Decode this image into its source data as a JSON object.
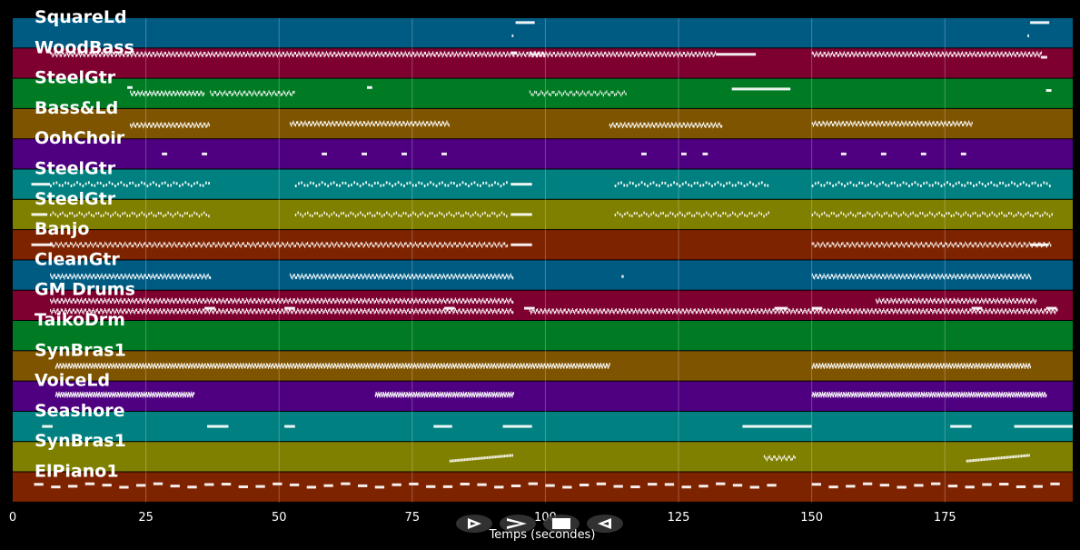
{
  "chart_data": {
    "type": "piano-roll",
    "xlabel": "Temps (secondes)",
    "xlim": [
      0,
      199
    ],
    "xticks": [
      0,
      25,
      50,
      75,
      100,
      125,
      150,
      175
    ],
    "grid": true,
    "tracks": [
      {
        "name": "SquareLd",
        "color": "#005b83",
        "notes": [
          [
            94.4,
            3.6,
            0.15
          ],
          [
            93.7,
            0.3,
            0.6
          ],
          [
            191,
            3.6,
            0.15
          ],
          [
            190.5,
            0.3,
            0.6
          ]
        ]
      },
      {
        "name": "WoodBass",
        "color": "#7e0030",
        "dense": [
          [
            7,
            100,
            0.2,
            0.2
          ],
          [
            97,
            132,
            0.2,
            0.2
          ],
          [
            150,
            193,
            0.2,
            0.2
          ]
        ],
        "notes": [
          [
            132,
            7.5,
            0.2
          ],
          [
            93.5,
            1.2,
            0.15
          ],
          [
            193,
            1.2,
            0.3
          ]
        ]
      },
      {
        "name": "SteelGtr",
        "color": "#007b24",
        "dense": [
          [
            22,
            36,
            0.2,
            0.5
          ],
          [
            37,
            53,
            0.25,
            0.5
          ],
          [
            97,
            115,
            0.3,
            0.5
          ]
        ],
        "notes": [
          [
            135,
            11,
            0.35
          ],
          [
            66.5,
            1,
            0.3
          ],
          [
            194,
            1,
            0.4
          ],
          [
            21.5,
            1,
            0.3
          ]
        ]
      },
      {
        "name": "Bass&Ld",
        "color": "#7f5400",
        "dense": [
          [
            22,
            37,
            0.2,
            0.55
          ],
          [
            52,
            82,
            0.2,
            0.5
          ],
          [
            112,
            133,
            0.2,
            0.55
          ],
          [
            150,
            180,
            0.2,
            0.5
          ]
        ],
        "notes": []
      },
      {
        "name": "OohChoir",
        "color": "#4e0080",
        "notes": [
          [
            28,
            1,
            0.5
          ],
          [
            35.5,
            1,
            0.5
          ],
          [
            58,
            1,
            0.5
          ],
          [
            65.5,
            1,
            0.5
          ],
          [
            73,
            1,
            0.5
          ],
          [
            80.5,
            1,
            0.5
          ],
          [
            118,
            1,
            0.5
          ],
          [
            125.5,
            1,
            0.5
          ],
          [
            129.5,
            1,
            0.5
          ],
          [
            155.5,
            1,
            0.5
          ],
          [
            163,
            1,
            0.5
          ],
          [
            170.5,
            1,
            0.5
          ],
          [
            178,
            1,
            0.5
          ]
        ]
      },
      {
        "name": "SteelGtr",
        "color": "#008080",
        "dense": [
          [
            7,
            37,
            0.55,
            0.5
          ],
          [
            53,
            93,
            0.55,
            0.5
          ],
          [
            113,
            142,
            0.55,
            0.5
          ],
          [
            150,
            195,
            0.55,
            0.5
          ]
        ],
        "notes": [
          [
            3.5,
            3.5,
            0.5
          ],
          [
            93.5,
            4,
            0.5
          ]
        ]
      },
      {
        "name": "SteelGtr",
        "color": "#7f7f00",
        "dense": [
          [
            7,
            37,
            0.45,
            0.5
          ],
          [
            53,
            93,
            0.45,
            0.5
          ],
          [
            113,
            142,
            0.45,
            0.5
          ],
          [
            150,
            195,
            0.45,
            0.5
          ]
        ],
        "notes": [
          [
            3.5,
            3,
            0.5
          ],
          [
            93.5,
            4,
            0.5
          ]
        ]
      },
      {
        "name": "Banjo",
        "color": "#7e2300",
        "dense": [
          [
            7,
            93,
            0.25,
            0.5
          ],
          [
            150,
            195,
            0.25,
            0.5
          ]
        ],
        "notes": [
          [
            3.5,
            4,
            0.5
          ],
          [
            93.5,
            4,
            0.5
          ],
          [
            191,
            3.5,
            0.5
          ]
        ]
      },
      {
        "name": "CleanGtr",
        "color": "#005b83",
        "dense": [
          [
            7,
            37,
            0.2,
            0.55
          ],
          [
            52,
            94,
            0.2,
            0.55
          ],
          [
            150,
            191,
            0.2,
            0.55
          ]
        ],
        "notes": [
          [
            114.3,
            0.4,
            0.55
          ]
        ]
      },
      {
        "name": "GM Drums",
        "color": "#7e0030",
        "dense": [
          [
            7,
            94,
            0.2,
            0.35
          ],
          [
            7,
            94,
            0.2,
            0.7
          ],
          [
            97,
            196,
            0.2,
            0.7
          ],
          [
            162,
            192,
            0.2,
            0.35
          ]
        ],
        "notes": [
          [
            36,
            2,
            0.6
          ],
          [
            51,
            2,
            0.6
          ],
          [
            81,
            2,
            0.6
          ],
          [
            96,
            2,
            0.6
          ],
          [
            143,
            2.5,
            0.6
          ],
          [
            150,
            2,
            0.6
          ],
          [
            180,
            2,
            0.6
          ],
          [
            194,
            2,
            0.6
          ]
        ]
      },
      {
        "name": "TaikoDrm",
        "color": "#007b24",
        "notes": []
      },
      {
        "name": "SynBras1",
        "color": "#7f5400",
        "dense": [
          [
            8,
            112,
            0.15,
            0.5
          ],
          [
            150,
            191,
            0.15,
            0.5
          ]
        ],
        "notes": []
      },
      {
        "name": "VoiceLd",
        "color": "#4e0080",
        "dense": [
          [
            8,
            34,
            0.12,
            0.45
          ],
          [
            68,
            94,
            0.12,
            0.45
          ],
          [
            150,
            194,
            0.12,
            0.45
          ]
        ],
        "notes": []
      },
      {
        "name": "Seashore",
        "color": "#008080",
        "notes": [
          [
            5.5,
            2,
            0.5
          ],
          [
            36.5,
            4,
            0.5
          ],
          [
            51,
            2,
            0.5
          ],
          [
            79,
            3.5,
            0.5
          ],
          [
            92,
            5.5,
            0.5
          ],
          [
            137,
            13,
            0.5
          ],
          [
            176,
            4,
            0.5
          ],
          [
            188,
            11,
            0.5
          ]
        ]
      },
      {
        "name": "SynBras1",
        "color": "#7f7f00",
        "dense": [
          [
            82,
            94,
            0.25,
            0.65,
            0.2
          ],
          [
            141,
            147,
            0.25,
            0.55
          ],
          [
            179,
            191,
            0.25,
            0.65,
            0.2
          ]
        ],
        "notes": []
      },
      {
        "name": "ElPiano1",
        "color": "#7e2300",
        "dense": [
          [
            4,
            143,
            3.2,
            0.45
          ],
          [
            150,
            196,
            3.2,
            0.45
          ]
        ],
        "notes": []
      }
    ]
  },
  "controls": [
    {
      "name": "play-button",
      "glyph": "play"
    },
    {
      "name": "next-button",
      "glyph": "next"
    },
    {
      "name": "stop-button",
      "glyph": "stop"
    },
    {
      "name": "back-button",
      "glyph": "back"
    }
  ]
}
